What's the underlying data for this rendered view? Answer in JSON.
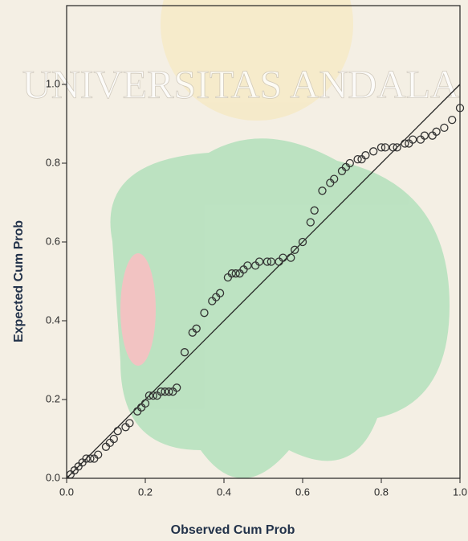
{
  "chart_data": {
    "type": "scatter",
    "watermark": "UNIVERSITAS ANDALA",
    "x_label": "Observed Cum Prob",
    "y_label": "Expected Cum Prob",
    "xlim": [
      0,
      1.0
    ],
    "ylim": [
      0,
      1.2
    ],
    "xticks": [
      {
        "value": 0,
        "label": "0.0"
      },
      0.2,
      0.4,
      0.6,
      0.8,
      {
        "value": 1,
        "label": "1.0"
      }
    ],
    "yticks": [
      {
        "value": 0,
        "label": "0.0"
      },
      0.2,
      0.4,
      0.6,
      0.8,
      {
        "value": 1,
        "label": "1.0"
      }
    ],
    "diagonal_line": true,
    "marker_color": "#333333",
    "x": [
      0.01,
      0.02,
      0.03,
      0.04,
      0.05,
      0.06,
      0.07,
      0.08,
      0.1,
      0.11,
      0.12,
      0.13,
      0.15,
      0.16,
      0.18,
      0.19,
      0.2,
      0.21,
      0.22,
      0.23,
      0.24,
      0.25,
      0.26,
      0.27,
      0.28,
      0.3,
      0.32,
      0.33,
      0.35,
      0.37,
      0.38,
      0.39,
      0.41,
      0.42,
      0.43,
      0.44,
      0.45,
      0.46,
      0.48,
      0.49,
      0.51,
      0.52,
      0.54,
      0.55,
      0.57,
      0.58,
      0.6,
      0.62,
      0.63,
      0.65,
      0.67,
      0.68,
      0.7,
      0.71,
      0.72,
      0.74,
      0.75,
      0.76,
      0.78,
      0.8,
      0.81,
      0.83,
      0.84,
      0.86,
      0.87,
      0.88,
      0.9,
      0.91,
      0.93,
      0.94,
      0.96,
      0.98,
      1.0
    ],
    "values": [
      0.01,
      0.02,
      0.03,
      0.04,
      0.05,
      0.05,
      0.05,
      0.06,
      0.08,
      0.09,
      0.1,
      0.12,
      0.13,
      0.14,
      0.17,
      0.18,
      0.19,
      0.21,
      0.21,
      0.21,
      0.22,
      0.22,
      0.22,
      0.22,
      0.23,
      0.32,
      0.37,
      0.38,
      0.42,
      0.45,
      0.46,
      0.47,
      0.51,
      0.52,
      0.52,
      0.52,
      0.53,
      0.54,
      0.54,
      0.55,
      0.55,
      0.55,
      0.55,
      0.56,
      0.56,
      0.58,
      0.6,
      0.65,
      0.68,
      0.73,
      0.75,
      0.76,
      0.78,
      0.79,
      0.8,
      0.81,
      0.81,
      0.82,
      0.83,
      0.84,
      0.84,
      0.84,
      0.84,
      0.85,
      0.85,
      0.86,
      0.86,
      0.87,
      0.87,
      0.88,
      0.89,
      0.91,
      0.94
    ]
  }
}
